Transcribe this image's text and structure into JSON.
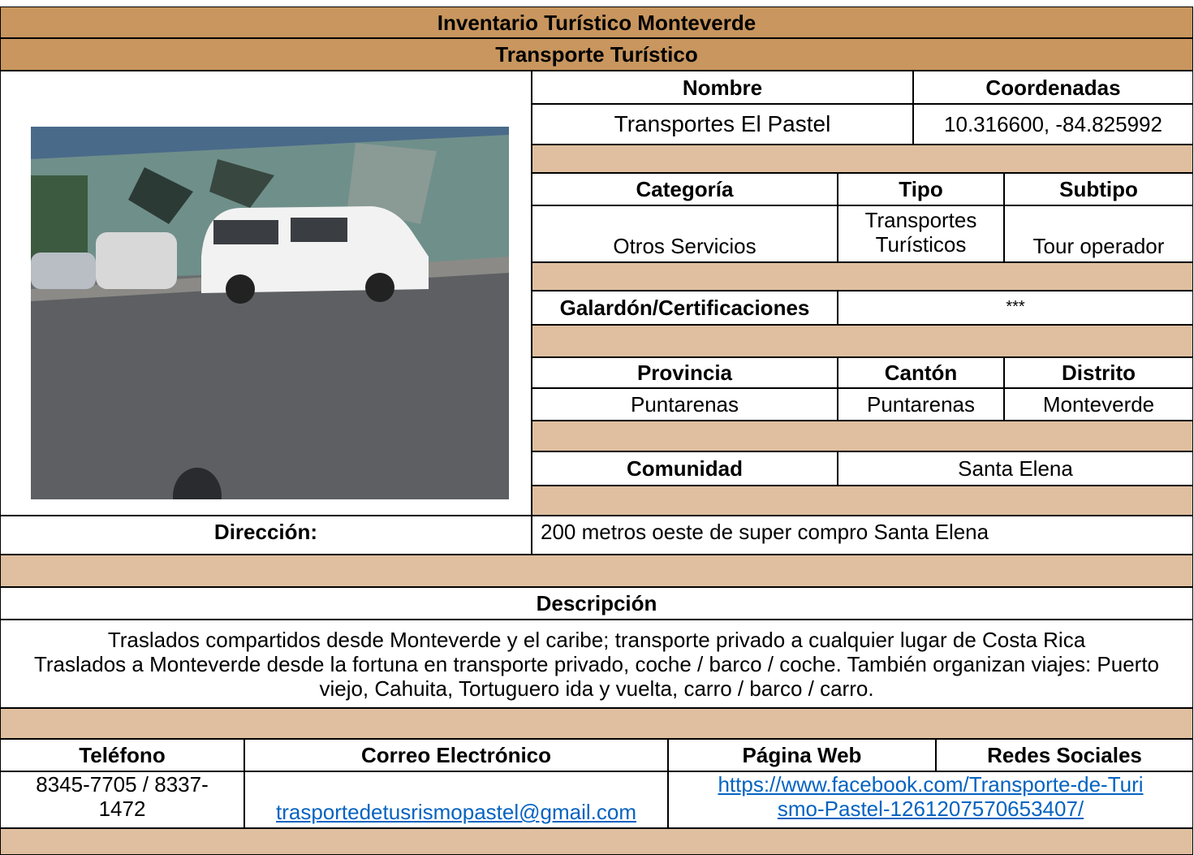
{
  "header": {
    "title": "Inventario Turístico Monteverde",
    "subtitle": "Transporte Turístico"
  },
  "identity": {
    "labels": [
      "Nombre",
      "Coordenadas"
    ],
    "values": [
      "Transportes El Pastel",
      "10.316600, -84.825992"
    ]
  },
  "classification": {
    "labels": [
      "Categoría",
      "Tipo",
      "Subtipo"
    ],
    "values": [
      "Otros Servicios",
      "Transportes Turísticos",
      "Tour operador"
    ]
  },
  "award": {
    "label": "Galardón/Certificaciones",
    "value": "***"
  },
  "location": {
    "labels": [
      "Provincia",
      "Cantón",
      "Distrito"
    ],
    "values": [
      "Puntarenas",
      "Puntarenas",
      "Monteverde"
    ]
  },
  "community": {
    "label": "Comunidad",
    "value": "Santa Elena"
  },
  "address": {
    "label": "Dirección:",
    "value": "200 metros oeste de super compro Santa Elena"
  },
  "description": {
    "label": "Descripción",
    "paragraphs": [
      "Traslados compartidos desde Monteverde y el caribe; transporte privado a cualquier lugar de Costa Rica",
      "Traslados a Monteverde desde la fortuna en transporte privado, coche / barco / coche. También organizan viajes: Puerto viejo, Cahuita, Tortuguero ida y vuelta, carro / barco / carro."
    ]
  },
  "contact": {
    "labels": [
      "Teléfono",
      "Correo Electrónico",
      "Página Web",
      "Redes Sociales"
    ],
    "phone": "8345-7705 / 8337-1472",
    "email": "trasportedetusrismopastel@gmail.com",
    "web": "https://www.facebook.com/Transporte-de-Turismo-Pastel-1261207570653407/"
  }
}
